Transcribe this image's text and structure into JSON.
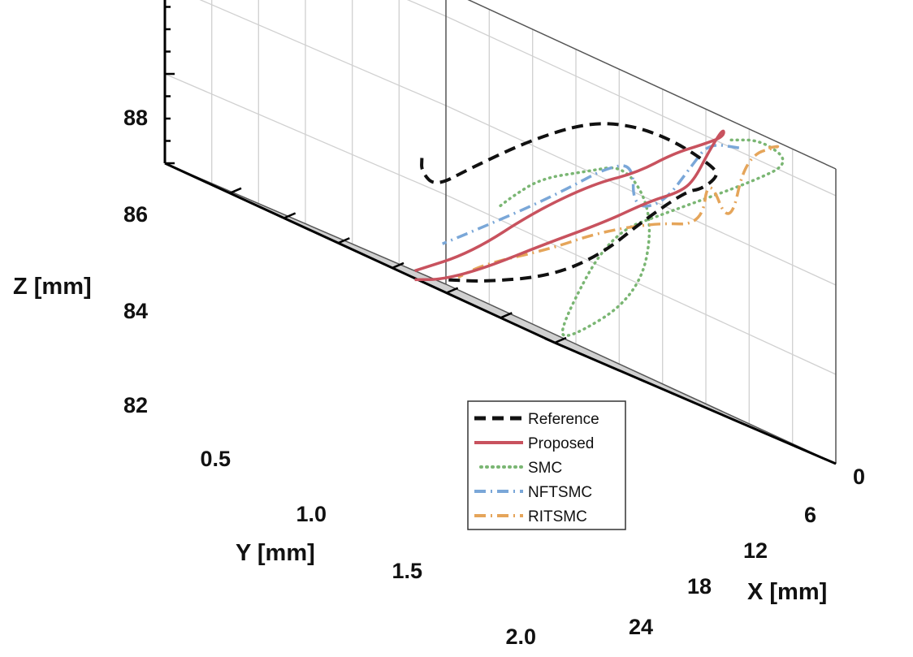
{
  "chart_data": {
    "type": "line3d",
    "title": "",
    "xlabel": "X [mm]",
    "ylabel": "Y [mm]",
    "zlabel": "Z [mm]",
    "xlim": [
      0,
      27
    ],
    "ylim": [
      0.2,
      2.0
    ],
    "zlim": [
      82,
      88.6
    ],
    "xticks": [
      "0",
      "6",
      "12",
      "18",
      "24"
    ],
    "yticks": [
      "0.5",
      "1.0",
      "1.5",
      "2.0"
    ],
    "zticks": [
      "82",
      "84",
      "86",
      "88"
    ],
    "grid": true,
    "legend_position": "bottom-center",
    "legend": [
      "Reference",
      "Proposed",
      "SMC",
      "NFTSMC",
      "RITSMC"
    ],
    "colors": {
      "reference": "#111111",
      "proposed": "#c8525e",
      "smc": "#7ab673",
      "nftsmc": "#7aa7d8",
      "ritsmc": "#e5a55a",
      "grid": "#d0d0d0",
      "frame": "#555555"
    },
    "series": [
      {
        "name": "Reference",
        "style": "dashed",
        "points": [
          [
            0.5,
            0.4,
            84.6
          ],
          [
            1.0,
            0.45,
            84.3
          ],
          [
            2.5,
            0.5,
            84.1
          ],
          [
            5,
            0.5,
            84.9
          ],
          [
            9,
            0.5,
            86.1
          ],
          [
            13,
            0.5,
            87.1
          ],
          [
            16,
            0.5,
            87.5
          ],
          [
            19,
            0.5,
            87.6
          ],
          [
            22,
            0.5,
            87.4
          ],
          [
            22.5,
            0.55,
            87.2
          ],
          [
            22,
            0.6,
            86.8
          ],
          [
            21.5,
            0.65,
            86.6
          ],
          [
            18,
            0.6,
            85.5
          ],
          [
            14,
            0.5,
            84.3
          ],
          [
            10,
            0.45,
            83.3
          ],
          [
            5,
            0.4,
            82.5
          ],
          [
            2,
            0.4,
            82.1
          ]
        ]
      },
      {
        "name": "Proposed",
        "style": "solid",
        "points": [
          [
            0,
            0.4,
            82.0
          ],
          [
            5,
            0.5,
            83.0
          ],
          [
            10,
            0.55,
            84.6
          ],
          [
            14,
            0.55,
            85.8
          ],
          [
            17,
            0.55,
            86.5
          ],
          [
            19,
            0.5,
            87.3
          ],
          [
            21,
            0.5,
            87.8
          ],
          [
            22.5,
            0.5,
            88.2
          ],
          [
            23,
            0.55,
            88.4
          ],
          [
            22.5,
            0.6,
            87.7
          ],
          [
            22,
            0.65,
            86.9
          ],
          [
            21.5,
            0.7,
            86.5
          ],
          [
            20,
            0.75,
            86.0
          ],
          [
            17,
            0.75,
            85.1
          ],
          [
            12,
            0.7,
            83.9
          ],
          [
            7,
            0.6,
            82.8
          ],
          [
            3,
            0.5,
            82.1
          ],
          [
            0,
            0.4,
            81.8
          ]
        ]
      },
      {
        "name": "SMC",
        "style": "dotted",
        "points": [
          [
            23,
            0.5,
            88.2
          ],
          [
            24,
            0.4,
            88.5
          ],
          [
            25,
            0.3,
            88.3
          ],
          [
            24,
            0.45,
            87.5
          ],
          [
            22,
            0.8,
            86.0
          ],
          [
            20,
            1.0,
            84.9
          ],
          [
            20,
            1.3,
            82.5
          ],
          [
            21,
            1.4,
            82.0
          ],
          [
            22,
            1.0,
            83.8
          ],
          [
            22,
            0.9,
            85.7
          ],
          [
            19,
            0.8,
            86.6
          ],
          [
            15,
            0.7,
            86.0
          ],
          [
            12,
            0.7,
            85.4
          ],
          [
            10,
            0.7,
            84.7
          ],
          [
            9,
            0.7,
            84.3
          ]
        ]
      },
      {
        "name": "NFTSMC",
        "style": "dashdot",
        "points": [
          [
            23,
            0.45,
            88.1
          ],
          [
            22,
            0.55,
            87.9
          ],
          [
            22,
            0.65,
            87.3
          ],
          [
            21,
            0.75,
            86.1
          ],
          [
            20,
            0.85,
            85.7
          ],
          [
            20,
            0.85,
            86.7
          ],
          [
            17,
            0.75,
            86.3
          ],
          [
            14,
            0.7,
            85.5
          ],
          [
            10,
            0.6,
            84.6
          ],
          [
            6,
            0.55,
            83.6
          ],
          [
            3,
            0.5,
            82.9
          ]
        ]
      },
      {
        "name": "RITSMC",
        "style": "dashdot",
        "points": [
          [
            24.5,
            0.4,
            88.4
          ],
          [
            25.5,
            0.4,
            88.6
          ],
          [
            24,
            0.5,
            88.0
          ],
          [
            24,
            0.6,
            86.2
          ],
          [
            22.5,
            0.6,
            87.2
          ],
          [
            21.5,
            0.55,
            86.0
          ],
          [
            19,
            0.6,
            85.6
          ],
          [
            15,
            0.6,
            84.8
          ],
          [
            11,
            0.55,
            83.9
          ],
          [
            6,
            0.5,
            82.9
          ],
          [
            3,
            0.4,
            82.3
          ]
        ]
      }
    ]
  }
}
